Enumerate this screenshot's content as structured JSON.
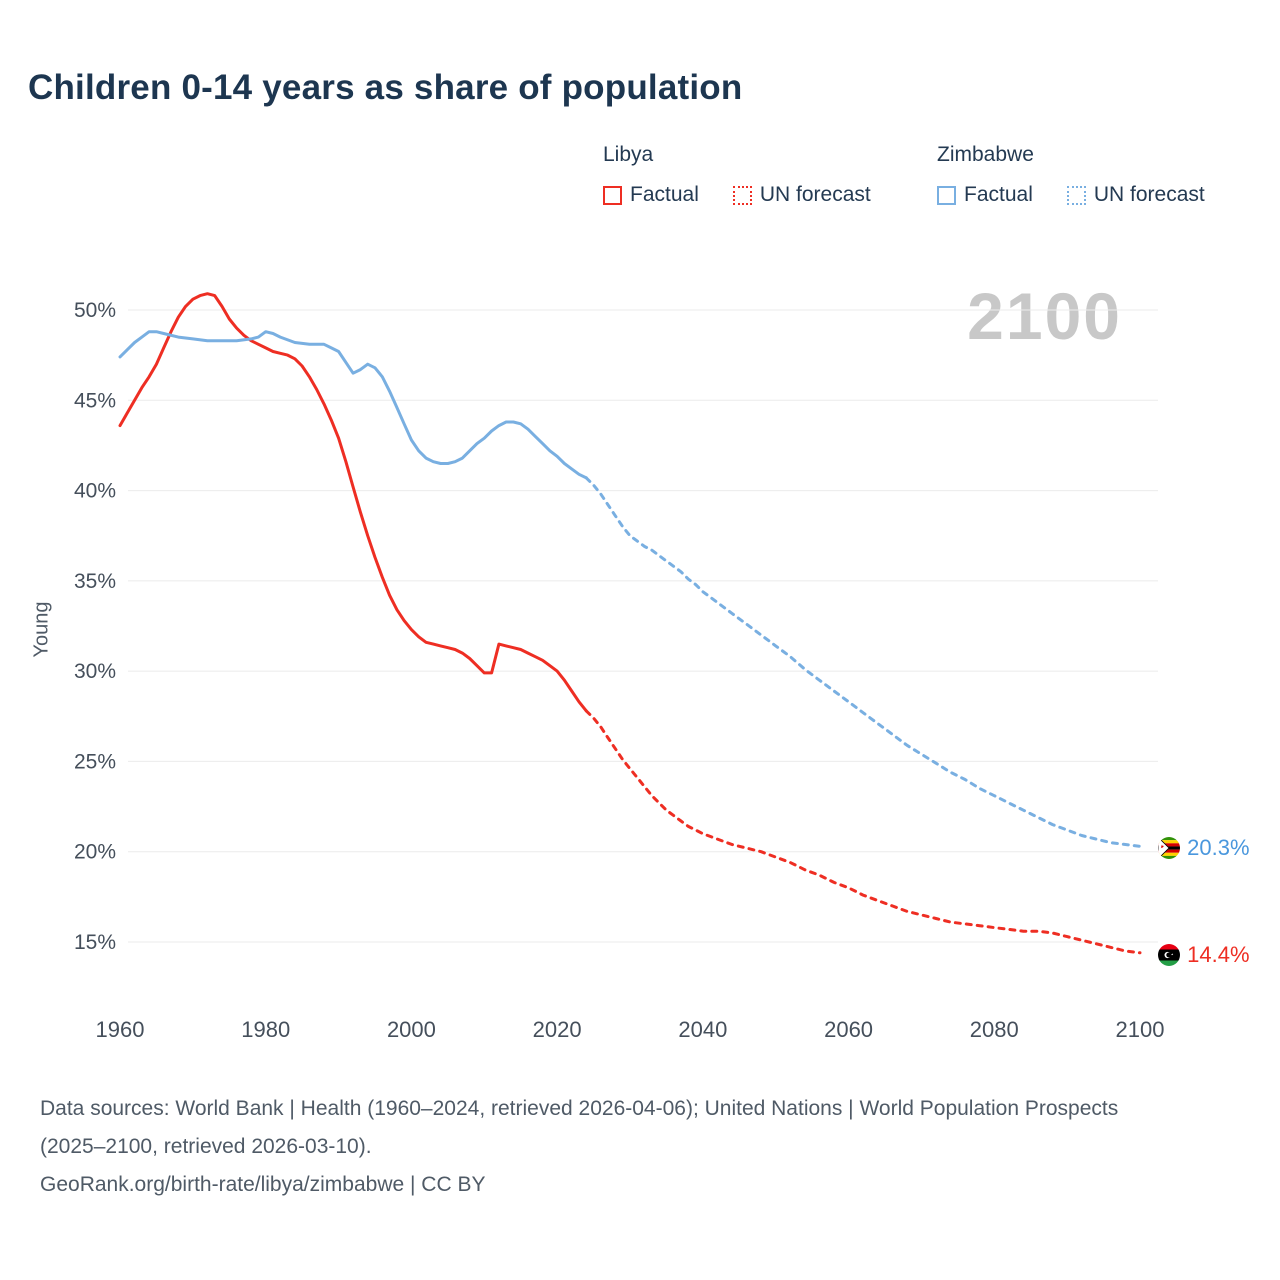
{
  "page": {
    "title": "Children 0-14 years as share of population"
  },
  "legend": {
    "groups": [
      {
        "country": "Libya",
        "factual_label": "Factual",
        "forecast_label": "UN forecast",
        "color": "#ee2e23"
      },
      {
        "country": "Zimbabwe",
        "factual_label": "Factual",
        "forecast_label": "UN forecast",
        "color": "#79afe1"
      }
    ]
  },
  "chart_data": {
    "type": "line",
    "title": "Children 0-14 years as share of population",
    "ylabel": "Young",
    "watermark": "2100",
    "xlim": [
      1955,
      2118
    ],
    "ylim": [
      13,
      52
    ],
    "yticks": [
      15,
      20,
      25,
      30,
      35,
      40,
      45,
      50
    ],
    "ytick_labels": [
      "15%",
      "20%",
      "25%",
      "30%",
      "35%",
      "40%",
      "45%",
      "50%"
    ],
    "xticks": [
      1960,
      1980,
      2000,
      2020,
      2040,
      2060,
      2080,
      2100
    ],
    "grid": true,
    "legend_position": "top",
    "series": [
      {
        "name": "Libya Factual",
        "color": "#ee2e23",
        "style": "solid",
        "points": [
          [
            1960,
            43.6
          ],
          [
            1961,
            44.3
          ],
          [
            1962,
            45.0
          ],
          [
            1963,
            45.7
          ],
          [
            1964,
            46.3
          ],
          [
            1965,
            47.0
          ],
          [
            1966,
            47.9
          ],
          [
            1967,
            48.8
          ],
          [
            1968,
            49.6
          ],
          [
            1969,
            50.2
          ],
          [
            1970,
            50.6
          ],
          [
            1971,
            50.8
          ],
          [
            1972,
            50.9
          ],
          [
            1973,
            50.8
          ],
          [
            1974,
            50.2
          ],
          [
            1975,
            49.5
          ],
          [
            1976,
            49.0
          ],
          [
            1977,
            48.6
          ],
          [
            1978,
            48.3
          ],
          [
            1979,
            48.1
          ],
          [
            1980,
            47.9
          ],
          [
            1981,
            47.7
          ],
          [
            1982,
            47.6
          ],
          [
            1983,
            47.5
          ],
          [
            1984,
            47.3
          ],
          [
            1985,
            46.9
          ],
          [
            1986,
            46.3
          ],
          [
            1987,
            45.6
          ],
          [
            1988,
            44.8
          ],
          [
            1989,
            43.9
          ],
          [
            1990,
            42.9
          ],
          [
            1991,
            41.6
          ],
          [
            1992,
            40.2
          ],
          [
            1993,
            38.8
          ],
          [
            1994,
            37.5
          ],
          [
            1995,
            36.3
          ],
          [
            1996,
            35.2
          ],
          [
            1997,
            34.2
          ],
          [
            1998,
            33.4
          ],
          [
            1999,
            32.8
          ],
          [
            2000,
            32.3
          ],
          [
            2001,
            31.9
          ],
          [
            2002,
            31.6
          ],
          [
            2003,
            31.5
          ],
          [
            2004,
            31.4
          ],
          [
            2005,
            31.3
          ],
          [
            2006,
            31.2
          ],
          [
            2007,
            31.0
          ],
          [
            2008,
            30.7
          ],
          [
            2009,
            30.3
          ],
          [
            2010,
            29.9
          ],
          [
            2011,
            29.9
          ],
          [
            2012,
            31.5
          ],
          [
            2013,
            31.4
          ],
          [
            2014,
            31.3
          ],
          [
            2015,
            31.2
          ],
          [
            2016,
            31.0
          ],
          [
            2017,
            30.8
          ],
          [
            2018,
            30.6
          ],
          [
            2019,
            30.3
          ],
          [
            2020,
            30.0
          ],
          [
            2021,
            29.5
          ],
          [
            2022,
            28.9
          ],
          [
            2023,
            28.3
          ],
          [
            2024,
            27.8
          ]
        ]
      },
      {
        "name": "Libya UN forecast",
        "color": "#ee2e23",
        "style": "dashed",
        "points": [
          [
            2024,
            27.8
          ],
          [
            2025,
            27.4
          ],
          [
            2026,
            26.9
          ],
          [
            2027,
            26.3
          ],
          [
            2028,
            25.7
          ],
          [
            2029,
            25.1
          ],
          [
            2030,
            24.6
          ],
          [
            2031,
            24.1
          ],
          [
            2032,
            23.6
          ],
          [
            2033,
            23.1
          ],
          [
            2034,
            22.7
          ],
          [
            2035,
            22.3
          ],
          [
            2036,
            22.0
          ],
          [
            2037,
            21.7
          ],
          [
            2038,
            21.4
          ],
          [
            2039,
            21.2
          ],
          [
            2040,
            21.0
          ],
          [
            2042,
            20.7
          ],
          [
            2044,
            20.4
          ],
          [
            2046,
            20.2
          ],
          [
            2048,
            20.0
          ],
          [
            2050,
            19.7
          ],
          [
            2052,
            19.4
          ],
          [
            2054,
            19.0
          ],
          [
            2056,
            18.7
          ],
          [
            2058,
            18.3
          ],
          [
            2060,
            18.0
          ],
          [
            2062,
            17.6
          ],
          [
            2064,
            17.3
          ],
          [
            2066,
            17.0
          ],
          [
            2068,
            16.7
          ],
          [
            2070,
            16.5
          ],
          [
            2072,
            16.3
          ],
          [
            2074,
            16.1
          ],
          [
            2076,
            16.0
          ],
          [
            2078,
            15.9
          ],
          [
            2080,
            15.8
          ],
          [
            2082,
            15.7
          ],
          [
            2084,
            15.6
          ],
          [
            2086,
            15.6
          ],
          [
            2088,
            15.5
          ],
          [
            2090,
            15.3
          ],
          [
            2092,
            15.1
          ],
          [
            2094,
            14.9
          ],
          [
            2096,
            14.7
          ],
          [
            2098,
            14.5
          ],
          [
            2100,
            14.4
          ]
        ]
      },
      {
        "name": "Zimbabwe Factual",
        "color": "#79afe1",
        "style": "solid",
        "points": [
          [
            1960,
            47.4
          ],
          [
            1961,
            47.8
          ],
          [
            1962,
            48.2
          ],
          [
            1963,
            48.5
          ],
          [
            1964,
            48.8
          ],
          [
            1965,
            48.8
          ],
          [
            1966,
            48.7
          ],
          [
            1968,
            48.5
          ],
          [
            1970,
            48.4
          ],
          [
            1972,
            48.3
          ],
          [
            1974,
            48.3
          ],
          [
            1976,
            48.3
          ],
          [
            1978,
            48.4
          ],
          [
            1979,
            48.5
          ],
          [
            1980,
            48.8
          ],
          [
            1981,
            48.7
          ],
          [
            1982,
            48.5
          ],
          [
            1984,
            48.2
          ],
          [
            1986,
            48.1
          ],
          [
            1988,
            48.1
          ],
          [
            1989,
            47.9
          ],
          [
            1990,
            47.7
          ],
          [
            1991,
            47.1
          ],
          [
            1992,
            46.5
          ],
          [
            1993,
            46.7
          ],
          [
            1994,
            47.0
          ],
          [
            1995,
            46.8
          ],
          [
            1996,
            46.3
          ],
          [
            1997,
            45.5
          ],
          [
            1998,
            44.6
          ],
          [
            1999,
            43.7
          ],
          [
            2000,
            42.8
          ],
          [
            2001,
            42.2
          ],
          [
            2002,
            41.8
          ],
          [
            2003,
            41.6
          ],
          [
            2004,
            41.5
          ],
          [
            2005,
            41.5
          ],
          [
            2006,
            41.6
          ],
          [
            2007,
            41.8
          ],
          [
            2008,
            42.2
          ],
          [
            2009,
            42.6
          ],
          [
            2010,
            42.9
          ],
          [
            2011,
            43.3
          ],
          [
            2012,
            43.6
          ],
          [
            2013,
            43.8
          ],
          [
            2014,
            43.8
          ],
          [
            2015,
            43.7
          ],
          [
            2016,
            43.4
          ],
          [
            2017,
            43.0
          ],
          [
            2018,
            42.6
          ],
          [
            2019,
            42.2
          ],
          [
            2020,
            41.9
          ],
          [
            2021,
            41.5
          ],
          [
            2022,
            41.2
          ],
          [
            2023,
            40.9
          ],
          [
            2024,
            40.7
          ]
        ]
      },
      {
        "name": "Zimbabwe UN forecast",
        "color": "#79afe1",
        "style": "dashed",
        "points": [
          [
            2024,
            40.7
          ],
          [
            2025,
            40.3
          ],
          [
            2026,
            39.8
          ],
          [
            2027,
            39.2
          ],
          [
            2028,
            38.6
          ],
          [
            2029,
            38.0
          ],
          [
            2030,
            37.5
          ],
          [
            2031,
            37.2
          ],
          [
            2032,
            36.9
          ],
          [
            2033,
            36.7
          ],
          [
            2034,
            36.4
          ],
          [
            2035,
            36.1
          ],
          [
            2036,
            35.8
          ],
          [
            2037,
            35.5
          ],
          [
            2038,
            35.1
          ],
          [
            2039,
            34.8
          ],
          [
            2040,
            34.4
          ],
          [
            2042,
            33.8
          ],
          [
            2044,
            33.2
          ],
          [
            2046,
            32.6
          ],
          [
            2048,
            32.0
          ],
          [
            2050,
            31.4
          ],
          [
            2052,
            30.8
          ],
          [
            2054,
            30.1
          ],
          [
            2056,
            29.5
          ],
          [
            2058,
            28.9
          ],
          [
            2060,
            28.3
          ],
          [
            2062,
            27.7
          ],
          [
            2064,
            27.1
          ],
          [
            2066,
            26.5
          ],
          [
            2068,
            25.9
          ],
          [
            2070,
            25.4
          ],
          [
            2072,
            24.9
          ],
          [
            2074,
            24.4
          ],
          [
            2076,
            24.0
          ],
          [
            2078,
            23.5
          ],
          [
            2080,
            23.1
          ],
          [
            2082,
            22.7
          ],
          [
            2084,
            22.3
          ],
          [
            2086,
            21.9
          ],
          [
            2088,
            21.5
          ],
          [
            2090,
            21.2
          ],
          [
            2092,
            20.9
          ],
          [
            2094,
            20.7
          ],
          [
            2096,
            20.5
          ],
          [
            2098,
            20.4
          ],
          [
            2100,
            20.3
          ]
        ]
      }
    ],
    "end_labels": [
      {
        "series": "Zimbabwe",
        "text": "20.3%",
        "year": 2104,
        "value": 20.3,
        "color": "#4a97dd",
        "flag": "zimbabwe"
      },
      {
        "series": "Libya",
        "text": "14.4%",
        "year": 2104,
        "value": 14.4,
        "color": "#ee2e23",
        "flag": "libya"
      }
    ]
  },
  "footer": {
    "sources": "Data sources: World Bank | Health (1960–2024, retrieved 2026-04-06); United Nations | World Population Prospects (2025–2100, retrieved 2026-03-10).",
    "attribution": "GeoRank.org/birth-rate/libya/zimbabwe | CC BY"
  }
}
